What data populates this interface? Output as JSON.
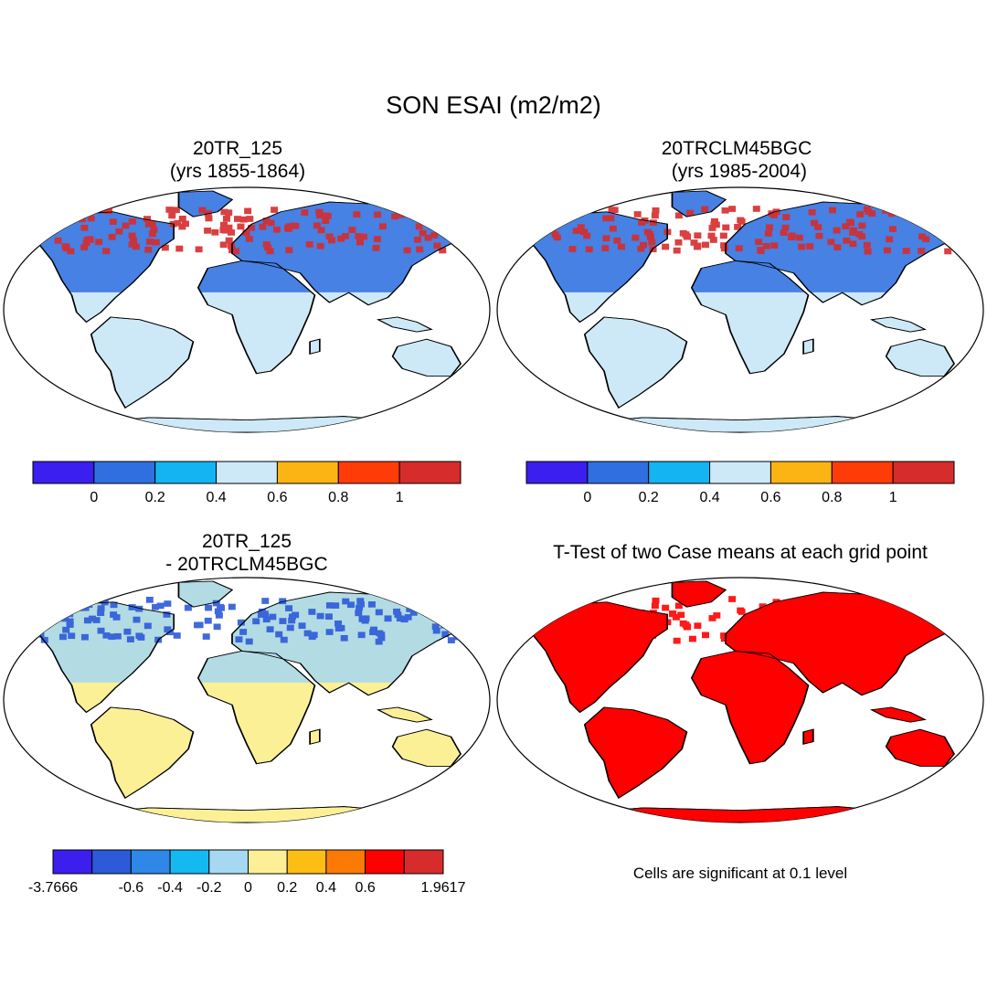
{
  "title": "SON ESAI (m2/m2)",
  "panels": [
    {
      "id": "p1",
      "title_line1": "20TR_125",
      "title_line2": "(yrs 1855-1864)"
    },
    {
      "id": "p2",
      "title_line1": "20TRCLM45BGC",
      "title_line2": " (yrs 1985-2004)"
    },
    {
      "id": "p3",
      "title_line1": "20TR_125",
      "title_line2": "- 20TRCLM45BGC"
    },
    {
      "id": "p4",
      "title_line1": "T-Test of two Case means at each grid point"
    }
  ],
  "colorbars": {
    "absolute": {
      "colors": [
        "#3b1ef0",
        "#2f6fe0",
        "#14b4f2",
        "#cde8f6",
        "#fcb414",
        "#ff3c08",
        "#d62c2c"
      ],
      "labels": [
        "0",
        "0.2",
        "0.4",
        "0.6",
        "0.8",
        "1"
      ]
    },
    "difference": {
      "colors": [
        "#3c1eee",
        "#2c5ad8",
        "#2f87e8",
        "#14b9f2",
        "#a6d8f2",
        "#fbf096",
        "#fcbe14",
        "#fb7a06",
        "#ff0000",
        "#d62c2c"
      ],
      "labels": [
        "-3.7666",
        "-0.6",
        "-0.4",
        "-0.2",
        "0",
        "0.2",
        "0.4",
        "0.6",
        "1.9617"
      ]
    }
  },
  "significance_color": "#ff0000",
  "note": "Cells are significant at 0.1 level"
}
